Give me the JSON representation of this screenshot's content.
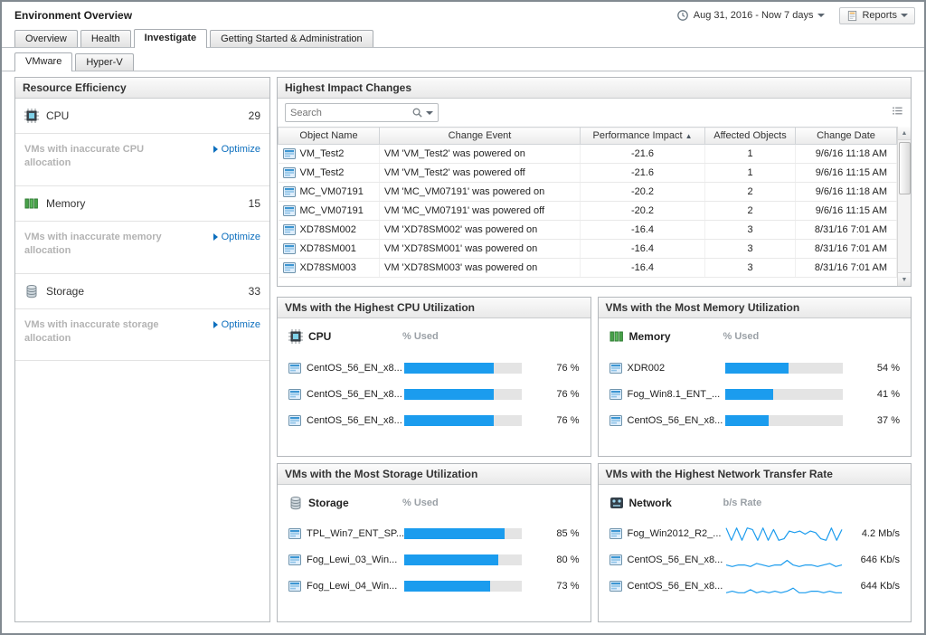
{
  "colors": {
    "accent_blue": "#1b9cee",
    "link_blue": "#0d6fbe"
  },
  "icons": {
    "time_range": "clock-icon",
    "reports": "report-document-icon",
    "search": "magnifier-icon",
    "table_options": "list-options-icon",
    "vm": "vm-icon",
    "cpu": "cpu-chip-icon",
    "memory": "memory-modules-icon",
    "storage": "database-cylinder-icon",
    "network": "network-icon"
  },
  "header": {
    "title": "Environment Overview",
    "time_range": "Aug 31, 2016 - Now 7 days",
    "reports_label": "Reports"
  },
  "tabs": {
    "main": [
      {
        "label": "Overview",
        "active": false
      },
      {
        "label": "Health",
        "active": false
      },
      {
        "label": "Investigate",
        "active": true
      },
      {
        "label": "Getting Started & Administration",
        "active": false
      }
    ],
    "sub": [
      {
        "label": "VMware",
        "active": true
      },
      {
        "label": "Hyper-V",
        "active": false
      }
    ]
  },
  "resource_efficiency": {
    "title": "Resource Efficiency",
    "items": [
      {
        "label": "CPU",
        "value": "29",
        "note": "VMs with inaccurate CPU allocation",
        "action": "Optimize"
      },
      {
        "label": "Memory",
        "value": "15",
        "note": "VMs with inaccurate memory allocation",
        "action": "Optimize"
      },
      {
        "label": "Storage",
        "value": "33",
        "note": "VMs with inaccurate storage allocation",
        "action": "Optimize"
      }
    ]
  },
  "impact_changes": {
    "title": "Highest Impact Changes",
    "search_placeholder": "Search",
    "sort_indicator": "▲",
    "scroll_up": "▲",
    "scroll_down": "▼",
    "columns": [
      "Object Name",
      "Change Event",
      "Performance Impact",
      "Affected Objects",
      "Change Date"
    ],
    "rows": [
      {
        "object": "VM_Test2",
        "event": "VM 'VM_Test2' was powered on",
        "impact": "-21.6",
        "affected": "1",
        "date": "9/6/16 11:18 AM"
      },
      {
        "object": "VM_Test2",
        "event": "VM 'VM_Test2' was powered off",
        "impact": "-21.6",
        "affected": "1",
        "date": "9/6/16 11:15 AM"
      },
      {
        "object": "MC_VM07191",
        "event": "VM 'MC_VM07191' was powered on",
        "impact": "-20.2",
        "affected": "2",
        "date": "9/6/16 11:18 AM"
      },
      {
        "object": "MC_VM07191",
        "event": "VM 'MC_VM07191' was powered off",
        "impact": "-20.2",
        "affected": "2",
        "date": "9/6/16 11:15 AM"
      },
      {
        "object": "XD78SM002",
        "event": "VM 'XD78SM002' was powered on",
        "impact": "-16.4",
        "affected": "3",
        "date": "8/31/16 7:01 AM"
      },
      {
        "object": "XD78SM001",
        "event": "VM 'XD78SM001' was powered on",
        "impact": "-16.4",
        "affected": "3",
        "date": "8/31/16 7:01 AM"
      },
      {
        "object": "XD78SM003",
        "event": "VM 'XD78SM003' was powered on",
        "impact": "-16.4",
        "affected": "3",
        "date": "8/31/16 7:01 AM"
      }
    ]
  },
  "cpu_panel": {
    "title": "VMs with the Highest CPU Utilization",
    "metric_label": "CPU",
    "value_header": "% Used",
    "rows": [
      {
        "name": "CentOS_56_EN_x8...",
        "percent": 76,
        "value": "76 %"
      },
      {
        "name": "CentOS_56_EN_x8...",
        "percent": 76,
        "value": "76 %"
      },
      {
        "name": "CentOS_56_EN_x8...",
        "percent": 76,
        "value": "76 %"
      }
    ]
  },
  "memory_panel": {
    "title": "VMs with the Most Memory Utilization",
    "metric_label": "Memory",
    "value_header": "% Used",
    "rows": [
      {
        "name": "XDR002",
        "percent": 54,
        "value": "54 %"
      },
      {
        "name": "Fog_Win8.1_ENT_...",
        "percent": 41,
        "value": "41 %"
      },
      {
        "name": "CentOS_56_EN_x8...",
        "percent": 37,
        "value": "37 %"
      }
    ]
  },
  "storage_panel": {
    "title": "VMs with the Most Storage Utilization",
    "metric_label": "Storage",
    "value_header": "% Used",
    "rows": [
      {
        "name": "TPL_Win7_ENT_SP...",
        "percent": 85,
        "value": "85 %"
      },
      {
        "name": "Fog_Lewi_03_Win...",
        "percent": 80,
        "value": "80 %"
      },
      {
        "name": "Fog_Lewi_04_Win...",
        "percent": 73,
        "value": "73 %"
      }
    ]
  },
  "network_panel": {
    "title": "VMs with the Highest Network Transfer Rate",
    "metric_label": "Network",
    "value_header": "b/s Rate",
    "rows": [
      {
        "name": "Fog_Win2012_R2_...",
        "value": "4.2 Mb/s",
        "sparkline": [
          9,
          1,
          9,
          1,
          9,
          8,
          1,
          9,
          1,
          8,
          1,
          2,
          7,
          6,
          7,
          5,
          7,
          6,
          2,
          1,
          9,
          1,
          8
        ]
      },
      {
        "name": "CentOS_56_EN_x8...",
        "value": "646 Kb/s",
        "sparkline": [
          2,
          1,
          2,
          2,
          1,
          3,
          2,
          1,
          2,
          2,
          5,
          2,
          1,
          2,
          2,
          1,
          2,
          3,
          1,
          2
        ]
      },
      {
        "name": "CentOS_56_EN_x8...",
        "value": "644 Kb/s",
        "sparkline": [
          1,
          2,
          1,
          1,
          3,
          1,
          2,
          1,
          2,
          1,
          2,
          4,
          1,
          1,
          2,
          2,
          1,
          2,
          1,
          1
        ]
      }
    ]
  }
}
